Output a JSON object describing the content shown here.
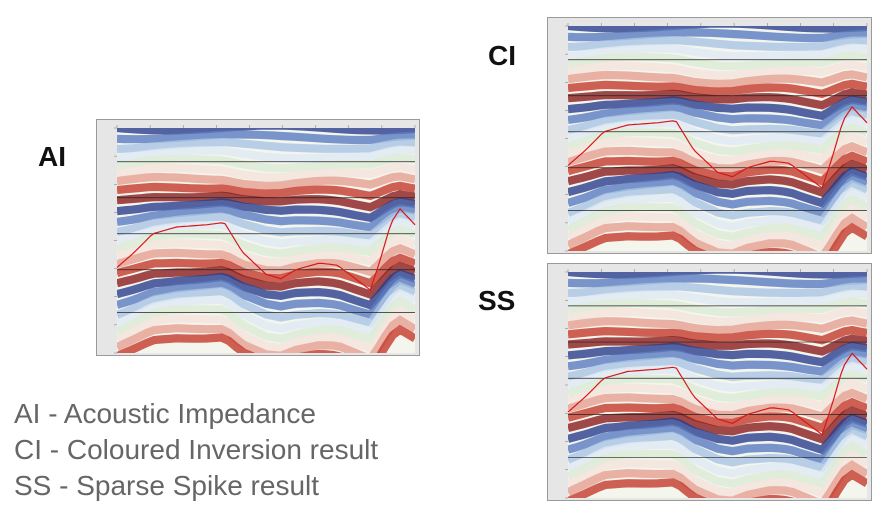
{
  "panels": [
    {
      "id": "ai",
      "label": "AI",
      "horizon_color": "#d81818"
    },
    {
      "id": "ci",
      "label": "CI",
      "horizon_color": "#d81818"
    },
    {
      "id": "ss",
      "label": "SS",
      "horizon_color": "#d81818"
    }
  ],
  "legend": [
    "AI - Acoustic Impedance",
    "CI - Coloured Inversion result",
    "SS - Sparse Spike result"
  ],
  "colors": {
    "band_colors": [
      "#2b3d8c",
      "#5a7cc0",
      "#a9c4e4",
      "#dfeaf4",
      "#dcebd6",
      "#f2e4dc",
      "#e6a091",
      "#c43a2c",
      "#8a1d1d"
    ],
    "grid_line": "#222222",
    "background": "#ffffff",
    "legend_text": "#666666"
  }
}
